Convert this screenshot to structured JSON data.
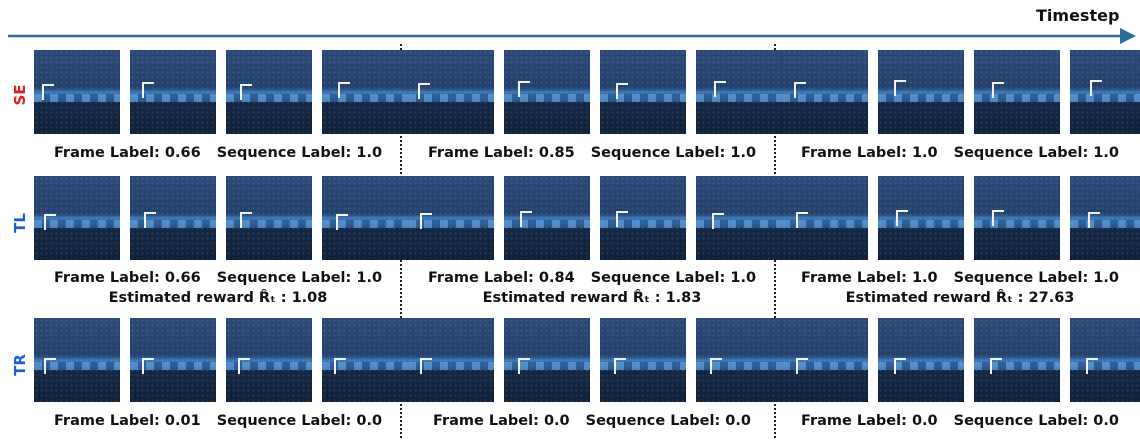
{
  "axis": {
    "label": "Timestep",
    "color": "#2a6f9a"
  },
  "rows": [
    {
      "label": "SE",
      "color": "#e02020",
      "frame_captions": [
        "Frame Label: 0.66",
        "Frame Label: 0.85",
        "Frame Label: 1.0"
      ],
      "sequence_captions": [
        "Sequence Label: 1.0",
        "Sequence Label: 1.0",
        "Sequence Label: 1.0"
      ],
      "reward_captions": []
    },
    {
      "label": "TL",
      "color": "#1a5fd6",
      "frame_captions": [
        "Frame Label: 0.66",
        "Frame Label: 0.84",
        "Frame Label: 1.0"
      ],
      "sequence_captions": [
        "Sequence Label: 1.0",
        "Sequence Label: 1.0",
        "Sequence Label: 1.0"
      ],
      "reward_captions": [
        "Estimated reward R̂ₜ : 1.08",
        "Estimated reward R̂ₜ : 1.83",
        "Estimated reward R̂ₜ : 27.63"
      ]
    },
    {
      "label": "TR",
      "color": "#1a5fd6",
      "frame_captions": [
        "Frame Label: 0.01",
        "Frame Label: 0.0",
        "Frame Label: 0.0"
      ],
      "sequence_captions": [
        "Sequence Label: 0.0",
        "Sequence Label: 0.0",
        "Sequence Label: 0.0"
      ],
      "reward_captions": []
    }
  ]
}
